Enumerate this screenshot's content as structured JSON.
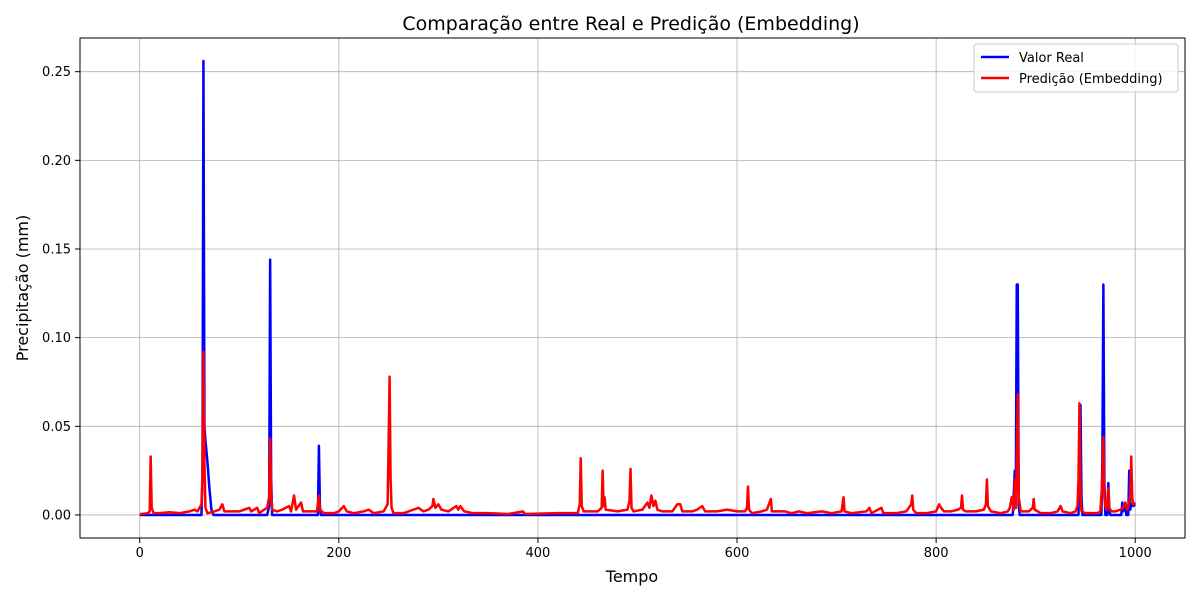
{
  "chart_data": {
    "type": "line",
    "title": "Comparação entre Real e Predição (Embedding)",
    "xlabel": "Tempo",
    "ylabel": "Precipitação (mm)",
    "xlim": [
      -60,
      1050
    ],
    "ylim": [
      -0.013,
      0.269
    ],
    "x_ticks": [
      0,
      200,
      400,
      600,
      800,
      1000
    ],
    "y_ticks": [
      0.0,
      0.05,
      0.1,
      0.15,
      0.2,
      0.25
    ],
    "x_tick_labels": [
      "0",
      "200",
      "400",
      "600",
      "800",
      "1000"
    ],
    "y_tick_labels": [
      "0.00",
      "0.05",
      "0.10",
      "0.15",
      "0.20",
      "0.25"
    ],
    "grid": true,
    "legend_position": "top-right",
    "series": [
      {
        "name": "Valor Real",
        "color": "#0000ff",
        "points": [
          [
            0,
            0
          ],
          [
            62,
            0
          ],
          [
            63,
            0.02
          ],
          [
            64,
            0.256
          ],
          [
            65,
            0.05
          ],
          [
            66,
            0.042
          ],
          [
            68,
            0.03
          ],
          [
            70,
            0.015
          ],
          [
            72,
            0.003
          ],
          [
            74,
            0
          ],
          [
            128,
            0
          ],
          [
            130,
            0.005
          ],
          [
            131,
            0.144
          ],
          [
            132,
            0.02
          ],
          [
            133,
            0
          ],
          [
            179,
            0
          ],
          [
            180,
            0.039
          ],
          [
            181,
            0.005
          ],
          [
            182,
            0
          ],
          [
            877,
            0
          ],
          [
            879,
            0.025
          ],
          [
            880,
            0.004
          ],
          [
            881,
            0.13
          ],
          [
            882,
            0.13
          ],
          [
            883,
            0.005
          ],
          [
            884,
            0
          ],
          [
            943,
            0
          ],
          [
            944,
            0.03
          ],
          [
            945,
            0.062
          ],
          [
            946,
            0.01
          ],
          [
            947,
            0
          ],
          [
            966,
            0
          ],
          [
            967,
            0.03
          ],
          [
            968,
            0.13
          ],
          [
            969,
            0.02
          ],
          [
            970,
            0
          ],
          [
            972,
            0
          ],
          [
            973,
            0.018
          ],
          [
            974,
            0.002
          ],
          [
            975,
            0
          ],
          [
            986,
            0
          ],
          [
            987,
            0.007
          ],
          [
            988,
            0.002
          ],
          [
            990,
            0.007
          ],
          [
            991,
            0
          ],
          [
            993,
            0
          ],
          [
            994,
            0.025
          ],
          [
            995,
            0.003
          ],
          [
            996,
            0.006
          ],
          [
            998,
            0.005
          ],
          [
            1000,
            0.006
          ]
        ]
      },
      {
        "name": "Predição (Embedding)",
        "color": "#ff0000",
        "points": [
          [
            0,
            0.0005
          ],
          [
            8,
            0.001
          ],
          [
            10,
            0.002
          ],
          [
            11,
            0.033
          ],
          [
            12,
            0.004
          ],
          [
            14,
            0.001
          ],
          [
            20,
            0.001
          ],
          [
            30,
            0.0015
          ],
          [
            40,
            0.001
          ],
          [
            50,
            0.002
          ],
          [
            55,
            0.003
          ],
          [
            58,
            0.002
          ],
          [
            60,
            0.004
          ],
          [
            62,
            0.006
          ],
          [
            63,
            0.02
          ],
          [
            64,
            0.092
          ],
          [
            65,
            0.03
          ],
          [
            66,
            0.004
          ],
          [
            68,
            0.001
          ],
          [
            75,
            0.002
          ],
          [
            80,
            0.003
          ],
          [
            83,
            0.006
          ],
          [
            85,
            0.002
          ],
          [
            95,
            0.002
          ],
          [
            100,
            0.002
          ],
          [
            110,
            0.004
          ],
          [
            112,
            0.002
          ],
          [
            118,
            0.004
          ],
          [
            120,
            0.001
          ],
          [
            125,
            0.003
          ],
          [
            128,
            0.004
          ],
          [
            130,
            0.01
          ],
          [
            131,
            0.043
          ],
          [
            132,
            0.012
          ],
          [
            133,
            0.003
          ],
          [
            138,
            0.002
          ],
          [
            143,
            0.003
          ],
          [
            150,
            0.005
          ],
          [
            152,
            0.002
          ],
          [
            155,
            0.011
          ],
          [
            157,
            0.003
          ],
          [
            162,
            0.007
          ],
          [
            164,
            0.002
          ],
          [
            170,
            0.002
          ],
          [
            178,
            0.002
          ],
          [
            180,
            0.011
          ],
          [
            181,
            0.003
          ],
          [
            185,
            0.001
          ],
          [
            195,
            0.001
          ],
          [
            200,
            0.002
          ],
          [
            205,
            0.005
          ],
          [
            208,
            0.002
          ],
          [
            215,
            0.001
          ],
          [
            225,
            0.002
          ],
          [
            230,
            0.003
          ],
          [
            235,
            0.001
          ],
          [
            245,
            0.002
          ],
          [
            249,
            0.006
          ],
          [
            250,
            0.04
          ],
          [
            251,
            0.078
          ],
          [
            252,
            0.02
          ],
          [
            253,
            0.004
          ],
          [
            255,
            0.001
          ],
          [
            265,
            0.001
          ],
          [
            270,
            0.002
          ],
          [
            275,
            0.003
          ],
          [
            280,
            0.004
          ],
          [
            285,
            0.002
          ],
          [
            290,
            0.003
          ],
          [
            294,
            0.005
          ],
          [
            295,
            0.009
          ],
          [
            297,
            0.004
          ],
          [
            300,
            0.006
          ],
          [
            303,
            0.003
          ],
          [
            310,
            0.002
          ],
          [
            318,
            0.005
          ],
          [
            320,
            0.003
          ],
          [
            322,
            0.005
          ],
          [
            326,
            0.002
          ],
          [
            335,
            0.001
          ],
          [
            350,
            0.001
          ],
          [
            370,
            0.0005
          ],
          [
            385,
            0.002
          ],
          [
            387,
            0.0005
          ],
          [
            420,
            0.001
          ],
          [
            440,
            0.001
          ],
          [
            442,
            0.006
          ],
          [
            443,
            0.032
          ],
          [
            444,
            0.005
          ],
          [
            446,
            0.002
          ],
          [
            460,
            0.002
          ],
          [
            464,
            0.004
          ],
          [
            465,
            0.025
          ],
          [
            466,
            0.005
          ],
          [
            467,
            0.01
          ],
          [
            468,
            0.003
          ],
          [
            480,
            0.002
          ],
          [
            490,
            0.003
          ],
          [
            492,
            0.008
          ],
          [
            493,
            0.026
          ],
          [
            494,
            0.004
          ],
          [
            496,
            0.002
          ],
          [
            505,
            0.003
          ],
          [
            510,
            0.007
          ],
          [
            512,
            0.004
          ],
          [
            514,
            0.011
          ],
          [
            516,
            0.005
          ],
          [
            518,
            0.008
          ],
          [
            520,
            0.003
          ],
          [
            525,
            0.002
          ],
          [
            535,
            0.002
          ],
          [
            540,
            0.006
          ],
          [
            543,
            0.006
          ],
          [
            545,
            0.002
          ],
          [
            555,
            0.002
          ],
          [
            560,
            0.003
          ],
          [
            565,
            0.005
          ],
          [
            568,
            0.002
          ],
          [
            580,
            0.002
          ],
          [
            590,
            0.003
          ],
          [
            600,
            0.002
          ],
          [
            608,
            0.002
          ],
          [
            610,
            0.004
          ],
          [
            611,
            0.016
          ],
          [
            612,
            0.003
          ],
          [
            615,
            0.001
          ],
          [
            625,
            0.002
          ],
          [
            630,
            0.003
          ],
          [
            634,
            0.009
          ],
          [
            635,
            0.002
          ],
          [
            640,
            0.002
          ],
          [
            648,
            0.002
          ],
          [
            655,
            0.001
          ],
          [
            662,
            0.002
          ],
          [
            670,
            0.001
          ],
          [
            685,
            0.002
          ],
          [
            695,
            0.001
          ],
          [
            705,
            0.002
          ],
          [
            707,
            0.01
          ],
          [
            708,
            0.002
          ],
          [
            715,
            0.001
          ],
          [
            730,
            0.002
          ],
          [
            733,
            0.004
          ],
          [
            735,
            0.001
          ],
          [
            745,
            0.004
          ],
          [
            747,
            0.001
          ],
          [
            760,
            0.001
          ],
          [
            770,
            0.002
          ],
          [
            775,
            0.006
          ],
          [
            776,
            0.011
          ],
          [
            777,
            0.003
          ],
          [
            780,
            0.001
          ],
          [
            790,
            0.001
          ],
          [
            800,
            0.002
          ],
          [
            803,
            0.006
          ],
          [
            805,
            0.004
          ],
          [
            808,
            0.002
          ],
          [
            815,
            0.002
          ],
          [
            822,
            0.003
          ],
          [
            825,
            0.004
          ],
          [
            826,
            0.011
          ],
          [
            827,
            0.003
          ],
          [
            830,
            0.002
          ],
          [
            840,
            0.002
          ],
          [
            848,
            0.003
          ],
          [
            850,
            0.006
          ],
          [
            851,
            0.02
          ],
          [
            852,
            0.005
          ],
          [
            855,
            0.002
          ],
          [
            865,
            0.001
          ],
          [
            872,
            0.002
          ],
          [
            874,
            0.004
          ],
          [
            876,
            0.01
          ],
          [
            878,
            0.003
          ],
          [
            879,
            0.02
          ],
          [
            880,
            0.004
          ],
          [
            881,
            0.032
          ],
          [
            882,
            0.068
          ],
          [
            883,
            0.01
          ],
          [
            885,
            0.002
          ],
          [
            893,
            0.002
          ],
          [
            897,
            0.004
          ],
          [
            898,
            0.009
          ],
          [
            899,
            0.003
          ],
          [
            905,
            0.001
          ],
          [
            915,
            0.001
          ],
          [
            922,
            0.002
          ],
          [
            925,
            0.005
          ],
          [
            927,
            0.002
          ],
          [
            935,
            0.001
          ],
          [
            940,
            0.002
          ],
          [
            942,
            0.005
          ],
          [
            943,
            0.02
          ],
          [
            944,
            0.063
          ],
          [
            945,
            0.012
          ],
          [
            946,
            0.002
          ],
          [
            950,
            0.001
          ],
          [
            962,
            0.001
          ],
          [
            965,
            0.002
          ],
          [
            967,
            0.02
          ],
          [
            968,
            0.044
          ],
          [
            969,
            0.01
          ],
          [
            970,
            0.005
          ],
          [
            971,
            0.003
          ],
          [
            972,
            0.008
          ],
          [
            973,
            0.015
          ],
          [
            974,
            0.004
          ],
          [
            976,
            0.002
          ],
          [
            980,
            0.002
          ],
          [
            985,
            0.003
          ],
          [
            988,
            0.004
          ],
          [
            990,
            0.007
          ],
          [
            992,
            0.003
          ],
          [
            995,
            0.01
          ],
          [
            996,
            0.033
          ],
          [
            997,
            0.01
          ],
          [
            998,
            0.006
          ],
          [
            1000,
            0.007
          ]
        ]
      }
    ]
  }
}
